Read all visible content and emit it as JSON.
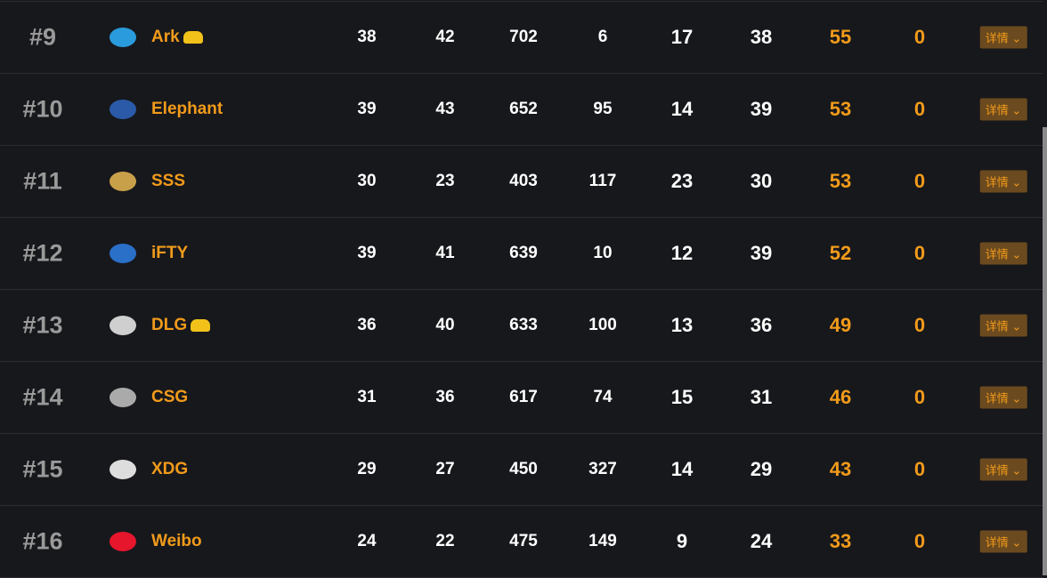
{
  "accent": "#f29b1a",
  "detail_label": "详情",
  "rows": [
    {
      "rank": "#9",
      "team": "Ark",
      "logo": "ark-logo",
      "badge": true,
      "logo_color": "#2a9bdc",
      "v": [
        "38",
        "42",
        "702",
        "6",
        "17",
        "38",
        "55",
        "0"
      ]
    },
    {
      "rank": "#10",
      "team": "Elephant",
      "logo": "elephant-logo",
      "badge": false,
      "logo_color": "#2a5aa8",
      "v": [
        "39",
        "43",
        "652",
        "95",
        "14",
        "39",
        "53",
        "0"
      ]
    },
    {
      "rank": "#11",
      "team": "SSS",
      "logo": "sss-logo",
      "badge": false,
      "logo_color": "#c9a04a",
      "v": [
        "30",
        "23",
        "403",
        "117",
        "23",
        "30",
        "53",
        "0"
      ]
    },
    {
      "rank": "#12",
      "team": "iFTY",
      "logo": "ifty-logo",
      "badge": false,
      "logo_color": "#2a6fc8",
      "v": [
        "39",
        "41",
        "639",
        "10",
        "12",
        "39",
        "52",
        "0"
      ]
    },
    {
      "rank": "#13",
      "team": "DLG",
      "logo": "dlg-logo",
      "badge": true,
      "logo_color": "#cfcfcf",
      "v": [
        "36",
        "40",
        "633",
        "100",
        "13",
        "36",
        "49",
        "0"
      ]
    },
    {
      "rank": "#14",
      "team": "CSG",
      "logo": "csg-logo",
      "badge": false,
      "logo_color": "#aaaaaa",
      "v": [
        "31",
        "36",
        "617",
        "74",
        "15",
        "31",
        "46",
        "0"
      ]
    },
    {
      "rank": "#15",
      "team": "XDG",
      "logo": "xdg-logo",
      "badge": false,
      "logo_color": "#dddddd",
      "v": [
        "29",
        "27",
        "450",
        "327",
        "14",
        "29",
        "43",
        "0"
      ]
    },
    {
      "rank": "#16",
      "team": "Weibo",
      "logo": "weibo-logo",
      "badge": false,
      "logo_color": "#e6162d",
      "v": [
        "24",
        "22",
        "475",
        "149",
        "9",
        "24",
        "33",
        "0"
      ]
    }
  ]
}
